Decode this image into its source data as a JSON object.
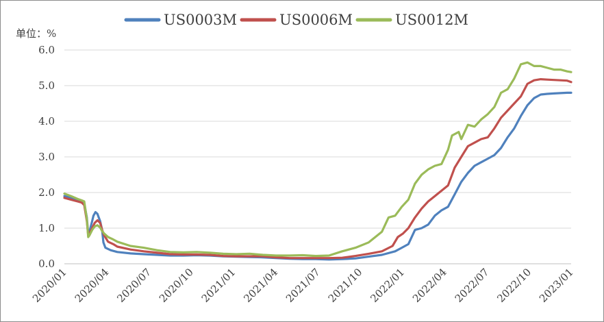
{
  "chart_data": {
    "type": "line",
    "title": "",
    "ylabel": "单位：%",
    "xlabel": "",
    "ylim": [
      0,
      6
    ],
    "yticks": [
      "0.0",
      "1.0",
      "2.0",
      "3.0",
      "4.0",
      "5.0",
      "6.0"
    ],
    "grid": true,
    "legend_position": "top",
    "xrange": [
      "2020-01",
      "2023-01"
    ],
    "xticks": [
      "2020/01",
      "2020/04",
      "2020/07",
      "2020/10",
      "2021/01",
      "2021/04",
      "2021/07",
      "2021/10",
      "2022/01",
      "2022/04",
      "2022/07",
      "2022/10",
      "2023/01"
    ],
    "series": [
      {
        "name": "US0003M",
        "color": "#4f81bd",
        "points": [
          [
            0,
            1.9
          ],
          [
            0.5,
            1.85
          ],
          [
            1.0,
            1.78
          ],
          [
            1.3,
            1.75
          ],
          [
            1.5,
            1.7
          ],
          [
            1.7,
            1.3
          ],
          [
            1.8,
            0.85
          ],
          [
            1.9,
            0.9
          ],
          [
            2.1,
            1.2
          ],
          [
            2.2,
            1.35
          ],
          [
            2.35,
            1.45
          ],
          [
            2.5,
            1.4
          ],
          [
            2.6,
            1.3
          ],
          [
            2.7,
            1.2
          ],
          [
            2.85,
            0.95
          ],
          [
            2.95,
            0.6
          ],
          [
            3.1,
            0.45
          ],
          [
            3.5,
            0.38
          ],
          [
            4.0,
            0.33
          ],
          [
            5.0,
            0.29
          ],
          [
            6.0,
            0.27
          ],
          [
            7.0,
            0.25
          ],
          [
            8.0,
            0.23
          ],
          [
            9.0,
            0.23
          ],
          [
            10.0,
            0.24
          ],
          [
            11.0,
            0.23
          ],
          [
            12.0,
            0.21
          ],
          [
            13.0,
            0.2
          ],
          [
            14.0,
            0.19
          ],
          [
            15.0,
            0.18
          ],
          [
            16.0,
            0.16
          ],
          [
            17.0,
            0.14
          ],
          [
            18.0,
            0.13
          ],
          [
            19.0,
            0.13
          ],
          [
            20.0,
            0.12
          ],
          [
            21.0,
            0.13
          ],
          [
            22.0,
            0.15
          ],
          [
            23.0,
            0.2
          ],
          [
            24.0,
            0.25
          ],
          [
            25.0,
            0.35
          ],
          [
            25.5,
            0.45
          ],
          [
            26.0,
            0.55
          ],
          [
            26.5,
            0.95
          ],
          [
            27.0,
            1.0
          ],
          [
            27.5,
            1.1
          ],
          [
            28.0,
            1.35
          ],
          [
            28.5,
            1.5
          ],
          [
            29.0,
            1.6
          ],
          [
            29.5,
            1.95
          ],
          [
            30.0,
            2.3
          ],
          [
            30.5,
            2.55
          ],
          [
            31.0,
            2.75
          ],
          [
            31.5,
            2.85
          ],
          [
            32.0,
            2.95
          ],
          [
            32.5,
            3.05
          ],
          [
            33.0,
            3.25
          ],
          [
            33.5,
            3.55
          ],
          [
            34.0,
            3.8
          ],
          [
            34.5,
            4.15
          ],
          [
            35.0,
            4.45
          ],
          [
            35.5,
            4.65
          ],
          [
            36.0,
            4.75
          ],
          [
            36.5,
            4.77
          ],
          [
            37.0,
            4.78
          ],
          [
            37.5,
            4.79
          ],
          [
            38.0,
            4.8
          ],
          [
            38.3,
            4.8
          ]
        ]
      },
      {
        "name": "US0006M",
        "color": "#c0504d",
        "points": [
          [
            0,
            1.85
          ],
          [
            0.5,
            1.8
          ],
          [
            1.0,
            1.75
          ],
          [
            1.3,
            1.72
          ],
          [
            1.5,
            1.65
          ],
          [
            1.7,
            1.2
          ],
          [
            1.8,
            0.8
          ],
          [
            1.9,
            0.85
          ],
          [
            2.1,
            1.0
          ],
          [
            2.3,
            1.15
          ],
          [
            2.5,
            1.22
          ],
          [
            2.7,
            1.15
          ],
          [
            2.85,
            0.95
          ],
          [
            3.0,
            0.8
          ],
          [
            3.3,
            0.62
          ],
          [
            3.7,
            0.55
          ],
          [
            4.0,
            0.48
          ],
          [
            5.0,
            0.4
          ],
          [
            6.0,
            0.35
          ],
          [
            7.0,
            0.31
          ],
          [
            8.0,
            0.27
          ],
          [
            9.0,
            0.26
          ],
          [
            10.0,
            0.26
          ],
          [
            11.0,
            0.25
          ],
          [
            12.0,
            0.22
          ],
          [
            13.0,
            0.21
          ],
          [
            14.0,
            0.21
          ],
          [
            15.0,
            0.21
          ],
          [
            16.0,
            0.18
          ],
          [
            17.0,
            0.16
          ],
          [
            18.0,
            0.16
          ],
          [
            19.0,
            0.16
          ],
          [
            20.0,
            0.16
          ],
          [
            21.0,
            0.17
          ],
          [
            22.0,
            0.22
          ],
          [
            23.0,
            0.28
          ],
          [
            24.0,
            0.35
          ],
          [
            24.8,
            0.5
          ],
          [
            25.2,
            0.75
          ],
          [
            25.6,
            0.85
          ],
          [
            26.0,
            1.0
          ],
          [
            26.5,
            1.3
          ],
          [
            27.0,
            1.55
          ],
          [
            27.5,
            1.75
          ],
          [
            28.0,
            1.9
          ],
          [
            28.5,
            2.05
          ],
          [
            29.0,
            2.2
          ],
          [
            29.5,
            2.7
          ],
          [
            30.0,
            3.0
          ],
          [
            30.5,
            3.3
          ],
          [
            31.0,
            3.4
          ],
          [
            31.5,
            3.5
          ],
          [
            32.0,
            3.55
          ],
          [
            32.5,
            3.8
          ],
          [
            33.0,
            4.1
          ],
          [
            33.5,
            4.3
          ],
          [
            34.0,
            4.5
          ],
          [
            34.5,
            4.7
          ],
          [
            35.0,
            5.05
          ],
          [
            35.5,
            5.15
          ],
          [
            36.0,
            5.18
          ],
          [
            36.5,
            5.17
          ],
          [
            37.0,
            5.16
          ],
          [
            37.5,
            5.15
          ],
          [
            38.0,
            5.14
          ],
          [
            38.3,
            5.1
          ]
        ]
      },
      {
        "name": "US0012M",
        "color": "#9bbb59",
        "points": [
          [
            0,
            1.97
          ],
          [
            0.5,
            1.9
          ],
          [
            1.0,
            1.82
          ],
          [
            1.3,
            1.78
          ],
          [
            1.5,
            1.75
          ],
          [
            1.7,
            1.25
          ],
          [
            1.8,
            0.75
          ],
          [
            1.9,
            0.8
          ],
          [
            2.1,
            0.95
          ],
          [
            2.3,
            1.05
          ],
          [
            2.5,
            1.08
          ],
          [
            2.7,
            1.02
          ],
          [
            2.85,
            0.92
          ],
          [
            3.0,
            0.85
          ],
          [
            3.3,
            0.75
          ],
          [
            3.7,
            0.68
          ],
          [
            4.0,
            0.62
          ],
          [
            5.0,
            0.5
          ],
          [
            6.0,
            0.45
          ],
          [
            7.0,
            0.38
          ],
          [
            8.0,
            0.33
          ],
          [
            9.0,
            0.32
          ],
          [
            10.0,
            0.33
          ],
          [
            11.0,
            0.31
          ],
          [
            12.0,
            0.28
          ],
          [
            13.0,
            0.27
          ],
          [
            14.0,
            0.28
          ],
          [
            15.0,
            0.25
          ],
          [
            16.0,
            0.23
          ],
          [
            17.0,
            0.23
          ],
          [
            18.0,
            0.24
          ],
          [
            19.0,
            0.22
          ],
          [
            20.0,
            0.23
          ],
          [
            21.0,
            0.35
          ],
          [
            22.0,
            0.45
          ],
          [
            23.0,
            0.6
          ],
          [
            24.0,
            0.9
          ],
          [
            24.5,
            1.3
          ],
          [
            25.0,
            1.35
          ],
          [
            25.5,
            1.6
          ],
          [
            26.0,
            1.8
          ],
          [
            26.5,
            2.25
          ],
          [
            27.0,
            2.5
          ],
          [
            27.5,
            2.65
          ],
          [
            28.0,
            2.75
          ],
          [
            28.5,
            2.8
          ],
          [
            29.0,
            3.2
          ],
          [
            29.3,
            3.6
          ],
          [
            29.8,
            3.7
          ],
          [
            30.0,
            3.5
          ],
          [
            30.5,
            3.9
          ],
          [
            31.0,
            3.85
          ],
          [
            31.5,
            4.05
          ],
          [
            32.0,
            4.2
          ],
          [
            32.5,
            4.4
          ],
          [
            33.0,
            4.8
          ],
          [
            33.5,
            4.9
          ],
          [
            34.0,
            5.2
          ],
          [
            34.5,
            5.6
          ],
          [
            35.0,
            5.65
          ],
          [
            35.5,
            5.55
          ],
          [
            36.0,
            5.55
          ],
          [
            36.5,
            5.5
          ],
          [
            37.0,
            5.45
          ],
          [
            37.5,
            5.45
          ],
          [
            38.0,
            5.4
          ],
          [
            38.3,
            5.38
          ]
        ]
      }
    ]
  }
}
